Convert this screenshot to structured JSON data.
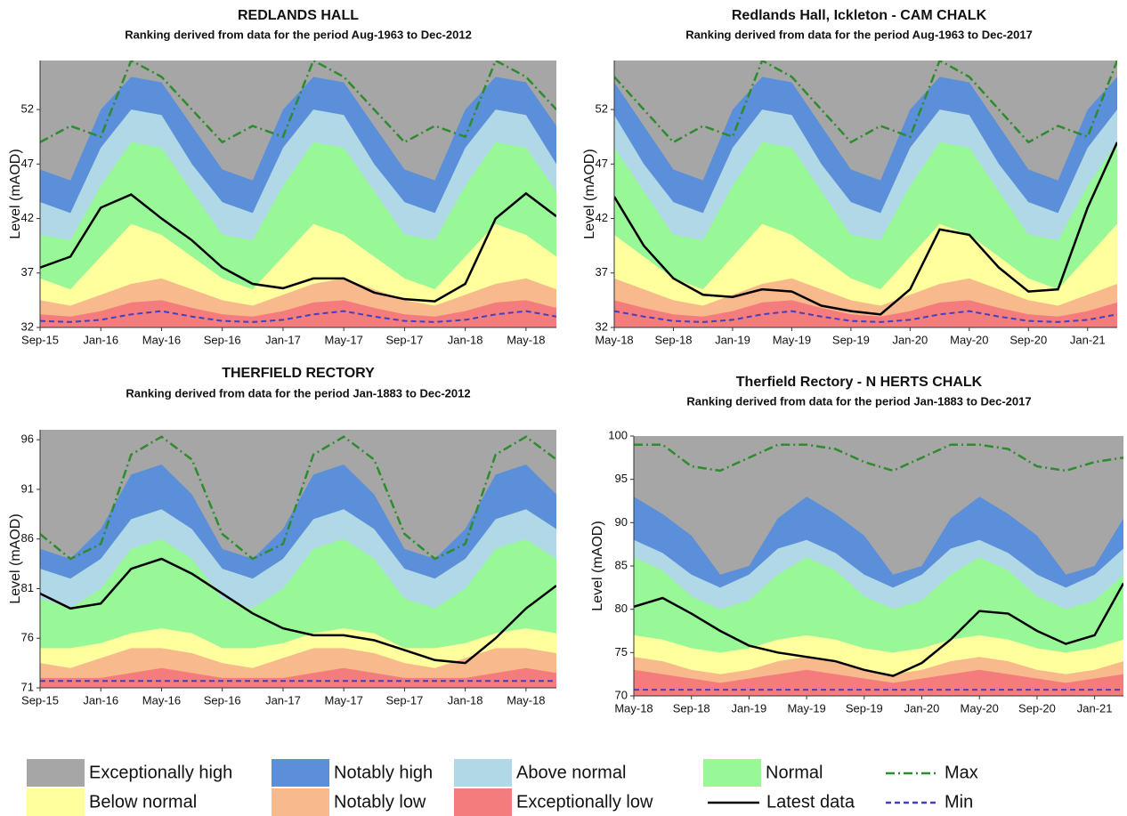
{
  "legend": [
    {
      "name": "Exceptionally low",
      "color": "#f47c7c"
    },
    {
      "name": "Notably low",
      "color": "#f8b98c"
    },
    {
      "name": "Below normal",
      "color": "#ffff9e"
    },
    {
      "name": "Normal",
      "color": "#98f898"
    },
    {
      "name": "Above normal",
      "color": "#b0d8e6"
    },
    {
      "name": "Notably high",
      "color": "#5b8fd9"
    },
    {
      "name": "Exceptionally high",
      "color": "#a6a6a6"
    },
    {
      "name": "Latest data",
      "color": "#000000"
    },
    {
      "name": "Max",
      "color": "#2e8b2e",
      "dash": "10 4 2 4"
    },
    {
      "name": "Min",
      "color": "#4040c0",
      "dash": "6 4"
    }
  ],
  "chart_data": [
    {
      "type": "area",
      "title": "REDLANDS HALL",
      "subtitle": "Ranking derived from data for the period Aug-1963 to Dec-2012",
      "ylabel": "Level (mAOD)",
      "categories": [
        "Sep-15",
        null,
        "Jan-16",
        null,
        "May-16",
        null,
        "Sep-16",
        null,
        "Jan-17",
        null,
        "May-17",
        null,
        "Sep-17",
        null,
        "Jan-18",
        null,
        "May-18",
        null
      ],
      "ylim": [
        32,
        56.5
      ],
      "yticks": [
        32,
        37,
        42,
        47,
        52
      ],
      "bands": [
        [
          33.2,
          33.0,
          33.5,
          34.3,
          34.5,
          33.8,
          33.2,
          33.0,
          33.5,
          34.3,
          34.5,
          33.8,
          33.2,
          33.0,
          33.5,
          34.3,
          34.5,
          33.8
        ],
        [
          34.5,
          34.0,
          35.0,
          36.0,
          36.5,
          35.5,
          34.5,
          34.0,
          35.0,
          36.0,
          36.5,
          35.5,
          34.5,
          34.0,
          35.0,
          36.0,
          36.5,
          35.5
        ],
        [
          36.5,
          35.5,
          38.5,
          41.5,
          40.5,
          38.5,
          36.5,
          35.5,
          38.5,
          41.5,
          40.5,
          38.5,
          36.5,
          35.5,
          38.5,
          41.5,
          40.5,
          38.5
        ],
        [
          40.5,
          40.0,
          45.0,
          49.0,
          48.5,
          44.5,
          40.5,
          40.0,
          45.0,
          49.0,
          48.5,
          44.5,
          40.5,
          40.0,
          45.0,
          49.0,
          48.5,
          44.5
        ],
        [
          43.5,
          42.5,
          48.5,
          52.0,
          51.5,
          47.0,
          43.5,
          42.5,
          48.5,
          52.0,
          51.5,
          47.0,
          43.5,
          42.5,
          48.5,
          52.0,
          51.5,
          47.0
        ],
        [
          46.5,
          45.5,
          52.0,
          55.0,
          54.5,
          50.5,
          46.5,
          45.5,
          52.0,
          55.0,
          54.5,
          50.5,
          46.5,
          45.5,
          52.0,
          55.0,
          54.5,
          50.5
        ]
      ],
      "max": [
        49.0,
        50.5,
        49.5,
        56.5,
        55.0,
        52.0,
        49.0,
        50.5,
        49.5,
        56.5,
        55.0,
        52.0,
        49.0,
        50.5,
        49.5,
        56.5,
        55.0,
        52.0
      ],
      "min": [
        32.6,
        32.5,
        32.7,
        33.2,
        33.5,
        33.0,
        32.6,
        32.5,
        32.7,
        33.2,
        33.5,
        33.0,
        32.6,
        32.5,
        32.7,
        33.2,
        33.5,
        33.0
      ],
      "latest": [
        37.5,
        38.5,
        43.0,
        44.2,
        42.0,
        40.0,
        37.5,
        36.0,
        35.6,
        36.5,
        36.5,
        35.2,
        34.6,
        34.4,
        36.0,
        42.0,
        44.3,
        42.2
      ]
    },
    {
      "type": "area",
      "title": "Redlands Hall, Ickleton - CAM CHALK",
      "subtitle": "Ranking derived from data for the period Aug-1963 to Dec-2017",
      "ylabel": "Level (mAOD)",
      "categories": [
        "May-18",
        null,
        "Sep-18",
        null,
        "Jan-19",
        null,
        "May-19",
        null,
        "Sep-19",
        null,
        "Jan-20",
        null,
        "May-20",
        null,
        "Sep-20",
        null,
        "Jan-21",
        null
      ],
      "ylim": [
        32,
        56.5
      ],
      "yticks": [
        32,
        37,
        42,
        47,
        52
      ],
      "bands": [
        [
          34.5,
          33.8,
          33.2,
          33.0,
          33.5,
          34.3,
          34.5,
          33.8,
          33.2,
          33.0,
          33.5,
          34.3,
          34.5,
          33.8,
          33.2,
          33.0,
          33.5,
          34.3
        ],
        [
          36.5,
          35.5,
          34.5,
          34.0,
          35.0,
          36.0,
          36.5,
          35.5,
          34.5,
          34.0,
          35.0,
          36.0,
          36.5,
          35.5,
          34.5,
          34.0,
          35.0,
          36.0
        ],
        [
          40.5,
          38.5,
          36.5,
          35.5,
          38.5,
          41.5,
          40.5,
          38.5,
          36.5,
          35.5,
          38.5,
          41.5,
          40.5,
          38.5,
          36.5,
          35.5,
          38.5,
          41.5
        ],
        [
          48.5,
          44.5,
          40.5,
          40.0,
          45.0,
          49.0,
          48.5,
          44.5,
          40.5,
          40.0,
          45.0,
          49.0,
          48.5,
          44.5,
          40.5,
          40.0,
          45.0,
          49.0
        ],
        [
          51.5,
          47.0,
          43.5,
          42.5,
          48.5,
          52.0,
          51.5,
          47.0,
          43.5,
          42.5,
          48.5,
          52.0,
          51.5,
          47.0,
          43.5,
          42.5,
          48.5,
          52.0
        ],
        [
          54.5,
          50.5,
          46.5,
          45.5,
          52.0,
          55.0,
          54.5,
          50.5,
          46.5,
          45.5,
          52.0,
          55.0,
          54.5,
          50.5,
          46.5,
          45.5,
          52.0,
          55.0
        ]
      ],
      "max": [
        55.0,
        52.0,
        49.0,
        50.5,
        49.5,
        56.5,
        55.0,
        52.0,
        49.0,
        50.5,
        49.5,
        56.5,
        55.0,
        52.0,
        49.0,
        50.5,
        49.5,
        56.5
      ],
      "min": [
        33.5,
        33.0,
        32.6,
        32.5,
        32.7,
        33.2,
        33.5,
        33.0,
        32.6,
        32.5,
        32.7,
        33.2,
        33.5,
        33.0,
        32.6,
        32.5,
        32.7,
        33.2
      ],
      "latest": [
        44.0,
        39.5,
        36.5,
        35.0,
        34.8,
        35.5,
        35.3,
        34.0,
        33.5,
        33.2,
        35.5,
        41.0,
        40.5,
        37.5,
        35.3,
        35.5,
        43.0,
        49.0
      ]
    },
    {
      "type": "area",
      "title": "THERFIELD RECTORY",
      "subtitle": "Ranking derived from data for the period Jan-1883 to Dec-2012",
      "ylabel": "Level (mAOD)",
      "categories": [
        "Sep-15",
        null,
        "Jan-16",
        null,
        "May-16",
        null,
        "Sep-16",
        null,
        "Jan-17",
        null,
        "May-17",
        null,
        "Sep-17",
        null,
        "Jan-18",
        null,
        "May-18",
        null
      ],
      "ylim": [
        71,
        97
      ],
      "yticks": [
        71,
        76,
        81,
        86,
        91,
        96
      ],
      "bands": [
        [
          72.0,
          72.0,
          72.0,
          72.5,
          73.0,
          72.5,
          72.0,
          72.0,
          72.0,
          72.5,
          73.0,
          72.5,
          72.0,
          72.0,
          72.0,
          72.5,
          73.0,
          72.5
        ],
        [
          73.5,
          73.0,
          74.0,
          75.0,
          75.0,
          74.5,
          73.5,
          73.0,
          74.0,
          75.0,
          75.0,
          74.5,
          73.5,
          73.0,
          74.0,
          75.0,
          75.0,
          74.5
        ],
        [
          75.0,
          75.0,
          75.5,
          76.5,
          77.0,
          76.5,
          75.0,
          75.0,
          75.5,
          76.5,
          77.0,
          76.5,
          75.0,
          75.0,
          75.5,
          76.5,
          77.0,
          76.5
        ],
        [
          80.0,
          79.0,
          81.0,
          85.0,
          86.0,
          84.0,
          80.0,
          79.0,
          81.0,
          85.0,
          86.0,
          84.0,
          80.0,
          79.0,
          81.0,
          85.0,
          86.0,
          84.0
        ],
        [
          83.0,
          82.0,
          84.0,
          88.0,
          89.0,
          87.0,
          83.0,
          82.0,
          84.0,
          88.0,
          89.0,
          87.0,
          83.0,
          82.0,
          84.0,
          88.0,
          89.0,
          87.0
        ],
        [
          85.0,
          84.0,
          87.0,
          92.5,
          93.5,
          90.5,
          85.0,
          84.0,
          87.0,
          92.5,
          93.5,
          90.5,
          85.0,
          84.0,
          87.0,
          92.5,
          93.5,
          90.5
        ]
      ],
      "max": [
        86.5,
        84.0,
        85.5,
        94.5,
        96.3,
        94.0,
        86.5,
        84.0,
        85.5,
        94.5,
        96.3,
        94.0,
        86.5,
        84.0,
        85.5,
        94.5,
        96.3,
        94.0
      ],
      "min": [
        71.7,
        71.7,
        71.7,
        71.7,
        71.7,
        71.7,
        71.7,
        71.7,
        71.7,
        71.7,
        71.7,
        71.7,
        71.7,
        71.7,
        71.7,
        71.7,
        71.7,
        71.7
      ],
      "latest": [
        80.5,
        79.0,
        79.5,
        83.0,
        84.0,
        82.5,
        80.5,
        78.5,
        77.0,
        76.3,
        76.3,
        75.8,
        74.8,
        73.8,
        73.5,
        76.0,
        79.0,
        81.3
      ]
    },
    {
      "type": "area",
      "title": "Therfield Rectory - N HERTS CHALK",
      "subtitle": "Ranking derived from data for the period Jan-1883 to Dec-2017",
      "ylabel": "Level (mAOD)",
      "categories": [
        "May-18",
        null,
        "Sep-18",
        null,
        "Jan-19",
        null,
        "May-19",
        null,
        "Sep-19",
        null,
        "Jan-20",
        null,
        "May-20",
        null,
        "Sep-20",
        null,
        "Jan-21",
        null
      ],
      "ylim": [
        70,
        100
      ],
      "yticks": [
        70,
        75,
        80,
        85,
        90,
        95,
        100
      ],
      "bands": [
        [
          73.0,
          72.5,
          72.0,
          71.5,
          72.0,
          72.5,
          73.0,
          72.5,
          72.0,
          71.5,
          72.0,
          72.5,
          73.0,
          72.5,
          72.0,
          71.5,
          72.0,
          72.5
        ],
        [
          74.5,
          74.0,
          73.0,
          72.5,
          73.0,
          74.0,
          74.5,
          74.0,
          73.0,
          72.5,
          73.0,
          74.0,
          74.5,
          74.0,
          73.0,
          72.5,
          73.0,
          74.0
        ],
        [
          77.0,
          76.5,
          75.5,
          75.0,
          75.5,
          76.5,
          77.0,
          76.5,
          75.5,
          75.0,
          75.5,
          76.5,
          77.0,
          76.5,
          75.5,
          75.0,
          75.5,
          76.5
        ],
        [
          86.0,
          84.5,
          81.5,
          80.0,
          81.0,
          84.0,
          86.0,
          84.5,
          81.5,
          80.0,
          81.0,
          84.0,
          86.0,
          84.5,
          81.5,
          80.0,
          81.0,
          84.0
        ],
        [
          88.0,
          86.5,
          84.0,
          82.5,
          84.0,
          87.0,
          88.0,
          86.5,
          84.0,
          82.5,
          84.0,
          87.0,
          88.0,
          86.5,
          84.0,
          82.5,
          84.0,
          87.0
        ],
        [
          93.0,
          91.0,
          88.5,
          84.0,
          85.0,
          90.5,
          93.0,
          91.0,
          88.5,
          84.0,
          85.0,
          90.5,
          93.0,
          91.0,
          88.5,
          84.0,
          85.0,
          90.5
        ]
      ],
      "max": [
        99.0,
        99.0,
        96.5,
        96.0,
        97.5,
        99.0,
        99.0,
        98.5,
        97.0,
        96.0,
        97.5,
        99.0,
        99.0,
        98.5,
        96.5,
        96.0,
        97.0,
        97.5
      ],
      "min": [
        70.7,
        70.7,
        70.7,
        70.7,
        70.7,
        70.7,
        70.7,
        70.7,
        70.7,
        70.7,
        70.7,
        70.7,
        70.7,
        70.7,
        70.7,
        70.7,
        70.7,
        70.7
      ],
      "latest": [
        80.3,
        81.3,
        79.5,
        77.5,
        75.8,
        75.0,
        74.5,
        74.0,
        73.0,
        72.3,
        73.8,
        76.5,
        79.8,
        79.5,
        77.5,
        76.0,
        77.0,
        83.0
      ]
    }
  ]
}
